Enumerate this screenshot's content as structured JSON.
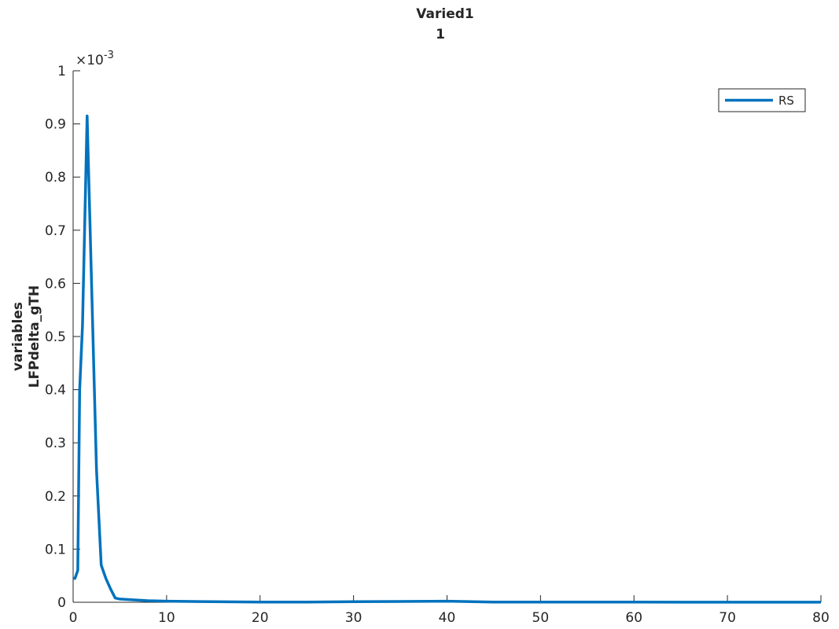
{
  "chart_data": {
    "type": "line",
    "title": [
      "Varied1",
      "1"
    ],
    "xlabel": "",
    "ylabel": [
      "variables",
      "LFPdelta_gTH"
    ],
    "y_exponent_label": "×10",
    "y_exponent_power": "-3",
    "xlim": [
      0,
      80
    ],
    "ylim": [
      0,
      1
    ],
    "xticks": [
      0,
      10,
      20,
      30,
      40,
      50,
      60,
      70,
      80
    ],
    "yticks": [
      0,
      0.1,
      0.2,
      0.3,
      0.4,
      0.5,
      0.6,
      0.7,
      0.8,
      0.9,
      1
    ],
    "grid": false,
    "legend_position": "top-right",
    "series": [
      {
        "name": "RS",
        "color": "#0072BD",
        "x": [
          0,
          0.2,
          0.5,
          0.7,
          1.0,
          1.5,
          2.0,
          2.5,
          3.0,
          3.5,
          4.0,
          4.5,
          5.0,
          6.0,
          8.0,
          10.0,
          15.0,
          20.0,
          25.0,
          30.0,
          35.0,
          40.0,
          45.0,
          50.0,
          55.0,
          60.0,
          65.0,
          70.0,
          75.0,
          80.0
        ],
        "y": [
          0.045,
          0.045,
          0.06,
          0.4,
          0.52,
          0.915,
          0.58,
          0.25,
          0.07,
          0.045,
          0.025,
          0.008,
          0.006,
          0.005,
          0.003,
          0.002,
          0.001,
          0.0005,
          0.0005,
          0.001,
          0.0015,
          0.002,
          0.0005,
          0.0004,
          0.0003,
          0.0003,
          0.0002,
          0.0002,
          0.0002,
          0.0002
        ]
      }
    ]
  }
}
